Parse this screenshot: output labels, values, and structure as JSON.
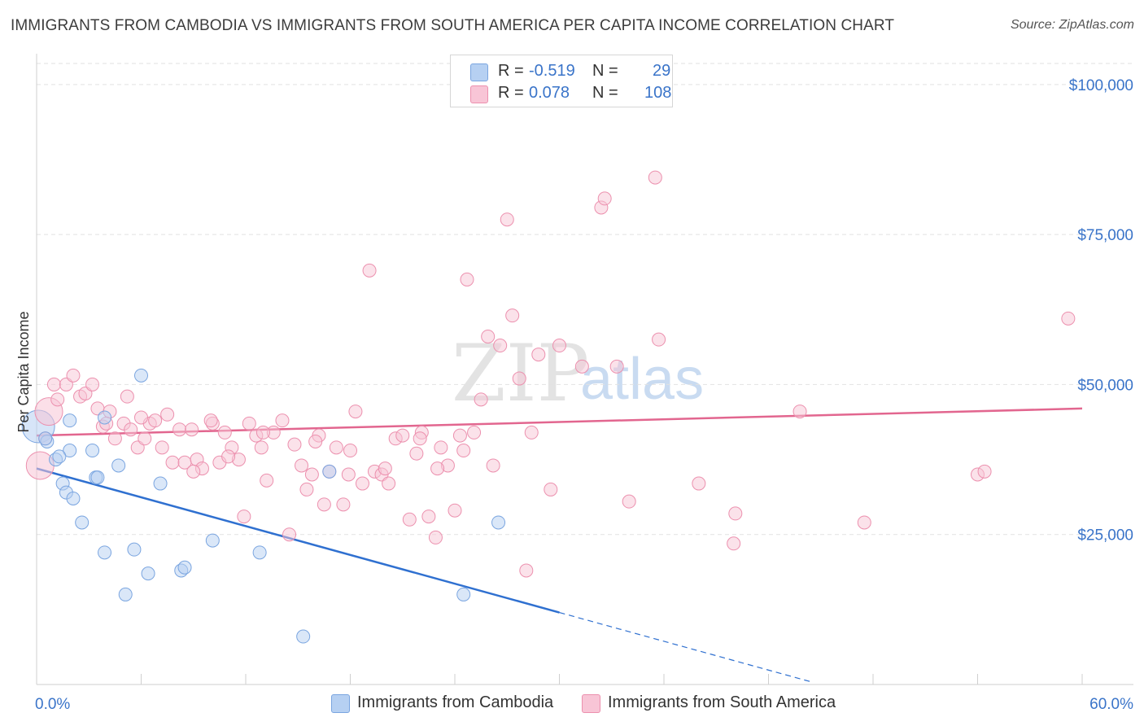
{
  "title": "IMMIGRANTS FROM CAMBODIA VS IMMIGRANTS FROM SOUTH AMERICA PER CAPITA INCOME CORRELATION CHART",
  "source": "Source: ZipAtlas.com",
  "watermark": {
    "zip": "ZIP",
    "atlas": "atlas"
  },
  "legend": {
    "r_label": "R =",
    "n_label": "N =",
    "series": [
      {
        "r": "-0.519",
        "n": "29",
        "fill": "#b6d0f2",
        "stroke": "#7aa5e0"
      },
      {
        "r": "0.078",
        "n": "108",
        "fill": "#f8c5d6",
        "stroke": "#ec90ae"
      }
    ]
  },
  "chart_data": {
    "type": "scatter",
    "title": "IMMIGRANTS FROM CAMBODIA VS IMMIGRANTS FROM SOUTH AMERICA PER CAPITA INCOME CORRELATION CHART",
    "xlabel": "",
    "ylabel": "Per Capita Income",
    "xlim": [
      0,
      60
    ],
    "ylim": [
      0,
      105000
    ],
    "x_tick_labels": [
      {
        "value": 0,
        "label": "0.0%"
      },
      {
        "value": 60,
        "label": "60.0%"
      }
    ],
    "y_ticks": [
      {
        "value": 25000,
        "label": "$25,000"
      },
      {
        "value": 50000,
        "label": "$50,000"
      },
      {
        "value": 75000,
        "label": "$75,000"
      },
      {
        "value": 100000,
        "label": "$100,000"
      }
    ],
    "grid": true,
    "series": [
      {
        "name": "Immigrants from Cambodia",
        "color": "#7aa5e0",
        "line_color": "#2f70d0",
        "trend": {
          "x0": 0,
          "y0": 36000,
          "x1": 30,
          "y1": 12000,
          "dashed_to_x": 44.5
        },
        "big_point": {
          "x": 0.1,
          "y": 43000
        },
        "points": [
          [
            0.6,
            40500
          ],
          [
            1.1,
            37500
          ],
          [
            1.5,
            33500
          ],
          [
            1.7,
            32000
          ],
          [
            1.9,
            39000
          ],
          [
            1.9,
            44000
          ],
          [
            2.1,
            31000
          ],
          [
            2.6,
            27000
          ],
          [
            3.2,
            39000
          ],
          [
            3.4,
            34500
          ],
          [
            3.5,
            34500
          ],
          [
            3.9,
            22000
          ],
          [
            3.9,
            44500
          ],
          [
            4.7,
            36500
          ],
          [
            5.1,
            15000
          ],
          [
            5.6,
            22500
          ],
          [
            6.0,
            51500
          ],
          [
            6.4,
            18500
          ],
          [
            7.1,
            33500
          ],
          [
            8.3,
            19000
          ],
          [
            8.5,
            19500
          ],
          [
            10.1,
            24000
          ],
          [
            12.8,
            22000
          ],
          [
            15.3,
            8000
          ],
          [
            16.8,
            35500
          ],
          [
            24.5,
            15000
          ],
          [
            26.5,
            27000
          ],
          [
            0.5,
            41000
          ],
          [
            1.3,
            38000
          ]
        ]
      },
      {
        "name": "Immigrants from South America",
        "color": "#ec90ae",
        "line_color": "#e2668f",
        "trend": {
          "x0": 0,
          "y0": 41500,
          "x1": 60,
          "y1": 46000
        },
        "big_points": [
          {
            "x": 0.2,
            "y": 36500
          },
          {
            "x": 0.7,
            "y": 45500
          }
        ],
        "points": [
          [
            0.5,
            41000
          ],
          [
            1.0,
            50000
          ],
          [
            1.2,
            47500
          ],
          [
            1.7,
            50000
          ],
          [
            2.1,
            51500
          ],
          [
            2.5,
            48000
          ],
          [
            2.8,
            48500
          ],
          [
            3.2,
            50000
          ],
          [
            3.5,
            46000
          ],
          [
            3.8,
            43000
          ],
          [
            4.2,
            45500
          ],
          [
            4.5,
            41000
          ],
          [
            5.0,
            43500
          ],
          [
            5.2,
            48000
          ],
          [
            5.4,
            42500
          ],
          [
            5.8,
            39500
          ],
          [
            6.2,
            41000
          ],
          [
            6.5,
            43500
          ],
          [
            6.8,
            44000
          ],
          [
            7.2,
            39500
          ],
          [
            7.5,
            45000
          ],
          [
            7.8,
            37000
          ],
          [
            8.2,
            42500
          ],
          [
            8.5,
            37000
          ],
          [
            8.9,
            42500
          ],
          [
            9.2,
            37500
          ],
          [
            9.5,
            36000
          ],
          [
            10.1,
            43500
          ],
          [
            10.5,
            37000
          ],
          [
            10.8,
            42000
          ],
          [
            11.2,
            39500
          ],
          [
            11.6,
            37500
          ],
          [
            11.9,
            28000
          ],
          [
            12.2,
            43500
          ],
          [
            12.6,
            41500
          ],
          [
            12.9,
            39500
          ],
          [
            13.2,
            34000
          ],
          [
            13.6,
            42000
          ],
          [
            14.1,
            44000
          ],
          [
            14.5,
            25000
          ],
          [
            14.8,
            40000
          ],
          [
            15.2,
            36500
          ],
          [
            15.5,
            32500
          ],
          [
            15.8,
            35000
          ],
          [
            16.2,
            41500
          ],
          [
            16.5,
            30000
          ],
          [
            16.8,
            35500
          ],
          [
            17.2,
            39500
          ],
          [
            17.6,
            30000
          ],
          [
            17.9,
            35000
          ],
          [
            18.3,
            45500
          ],
          [
            18.7,
            33500
          ],
          [
            19.1,
            69000
          ],
          [
            19.4,
            35500
          ],
          [
            19.8,
            35000
          ],
          [
            20.2,
            33500
          ],
          [
            20.6,
            41000
          ],
          [
            21.0,
            41500
          ],
          [
            21.4,
            27500
          ],
          [
            21.8,
            38500
          ],
          [
            22.1,
            42000
          ],
          [
            22.5,
            28000
          ],
          [
            22.9,
            24500
          ],
          [
            23.2,
            39500
          ],
          [
            23.6,
            36500
          ],
          [
            24.0,
            29000
          ],
          [
            24.3,
            41500
          ],
          [
            24.7,
            67500
          ],
          [
            25.1,
            42000
          ],
          [
            25.5,
            47500
          ],
          [
            25.9,
            58000
          ],
          [
            26.2,
            36500
          ],
          [
            26.6,
            56500
          ],
          [
            27.0,
            77500
          ],
          [
            27.3,
            61500
          ],
          [
            27.7,
            51000
          ],
          [
            28.1,
            19000
          ],
          [
            28.4,
            42000
          ],
          [
            28.8,
            55000
          ],
          [
            29.5,
            32500
          ],
          [
            30.0,
            56500
          ],
          [
            31.3,
            53000
          ],
          [
            32.4,
            79500
          ],
          [
            32.6,
            81000
          ],
          [
            33.3,
            53000
          ],
          [
            34.0,
            30500
          ],
          [
            35.5,
            84500
          ],
          [
            35.7,
            57500
          ],
          [
            38.0,
            33500
          ],
          [
            40.0,
            23500
          ],
          [
            40.1,
            28500
          ],
          [
            43.8,
            45500
          ],
          [
            47.5,
            27000
          ],
          [
            54.0,
            35000
          ],
          [
            54.4,
            35500
          ],
          [
            59.2,
            61000
          ],
          [
            13.0,
            42000
          ],
          [
            16.0,
            40500
          ],
          [
            18.0,
            39000
          ],
          [
            20.0,
            36000
          ],
          [
            22.0,
            41000
          ],
          [
            23.0,
            36000
          ],
          [
            24.5,
            39000
          ],
          [
            10.0,
            44000
          ],
          [
            9.0,
            35500
          ],
          [
            11.0,
            38000
          ],
          [
            6.0,
            44500
          ],
          [
            4.0,
            43500
          ]
        ]
      }
    ]
  }
}
